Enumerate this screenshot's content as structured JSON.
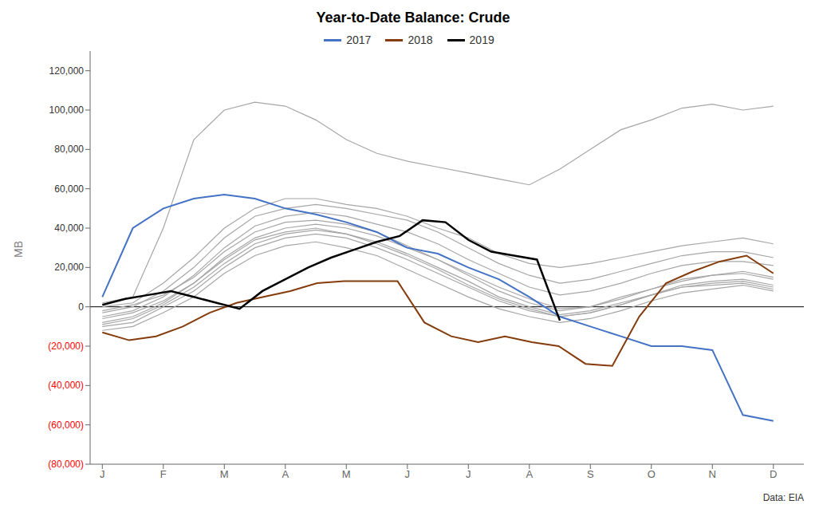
{
  "chart_data": {
    "type": "line",
    "title": "Year-to-Date Balance: Crude",
    "y_label": "MB",
    "annotation": "Data: EIA",
    "xlim": [
      -0.2,
      11.5
    ],
    "xticks": [
      {
        "value": 0,
        "label": "J"
      },
      {
        "value": 1,
        "label": "F"
      },
      {
        "value": 2,
        "label": "M"
      },
      {
        "value": 3,
        "label": "A"
      },
      {
        "value": 4,
        "label": "M"
      },
      {
        "value": 5,
        "label": "J"
      },
      {
        "value": 6,
        "label": "J"
      },
      {
        "value": 7,
        "label": "A"
      },
      {
        "value": 8,
        "label": "S"
      },
      {
        "value": 9,
        "label": "O"
      },
      {
        "value": 10,
        "label": "N"
      },
      {
        "value": 11,
        "label": "D"
      }
    ],
    "ylim": [
      -80000,
      130000
    ],
    "yticks": [
      {
        "value": -80000,
        "label": "(80,000)"
      },
      {
        "value": -60000,
        "label": "(60,000)"
      },
      {
        "value": -40000,
        "label": "(40,000)"
      },
      {
        "value": -20000,
        "label": "(20,000)"
      },
      0,
      {
        "value": 20000,
        "label": "20,000"
      },
      {
        "value": 40000,
        "label": "40,000"
      },
      {
        "value": 60000,
        "label": "60,000"
      },
      {
        "value": 80000,
        "label": "80,000"
      },
      {
        "value": 100000,
        "label": "100,000"
      },
      {
        "value": 120000,
        "label": "120,000"
      }
    ],
    "grid": false,
    "legend": "top",
    "x": [
      0,
      0.5,
      1,
      1.5,
      2,
      2.5,
      3,
      3.5,
      4,
      4.5,
      5,
      5.5,
      6,
      6.5,
      7,
      7.5,
      8,
      8.5,
      9,
      9.5,
      10,
      10.5,
      11
    ],
    "series": [
      {
        "color": "#A6A6A6",
        "values": [
          2000,
          5000,
          40000,
          85000,
          100000,
          104000,
          102000,
          95000,
          85000,
          78000,
          74000,
          71000,
          68000,
          65000,
          62000,
          70000,
          80000,
          90000,
          95000,
          101000,
          103000,
          100000,
          102000
        ]
      },
      {
        "color": "#A6A6A6",
        "values": [
          0,
          2000,
          12000,
          25000,
          40000,
          50000,
          55000,
          55000,
          52000,
          50000,
          46000,
          40000,
          35000,
          27000,
          22000,
          20000,
          22000,
          25000,
          28000,
          31000,
          33000,
          35000,
          32000
        ]
      },
      {
        "color": "#A6A6A6",
        "values": [
          -3000,
          0,
          8000,
          20000,
          35000,
          46000,
          50000,
          52000,
          50000,
          47000,
          44000,
          38000,
          30000,
          22000,
          16000,
          12000,
          14000,
          18000,
          22000,
          26000,
          28000,
          28000,
          25000
        ]
      },
      {
        "color": "#A6A6A6",
        "values": [
          -5000,
          -2000,
          5000,
          16000,
          30000,
          41000,
          46000,
          48000,
          46000,
          42000,
          38000,
          32000,
          24000,
          17000,
          10000,
          6000,
          8000,
          12000,
          17000,
          21000,
          23000,
          23000,
          21000
        ]
      },
      {
        "color": "#A6A6A6",
        "values": [
          -8000,
          -5000,
          2000,
          12000,
          25000,
          35000,
          40000,
          42000,
          40000,
          36000,
          30000,
          24000,
          16000,
          8000,
          2000,
          -2000,
          0,
          4000,
          9000,
          14000,
          16000,
          18000,
          15000
        ]
      },
      {
        "color": "#A6A6A6",
        "values": [
          -10000,
          -8000,
          0,
          8000,
          20000,
          30000,
          35000,
          37000,
          35000,
          30000,
          24000,
          17000,
          10000,
          3000,
          -2000,
          -5000,
          -3000,
          1000,
          6000,
          11000,
          13000,
          14000,
          11000
        ]
      },
      {
        "color": "#A6A6A6",
        "values": [
          -12000,
          -10000,
          -3000,
          5000,
          17000,
          26000,
          31000,
          33000,
          30000,
          26000,
          19000,
          12000,
          5000,
          -1000,
          -5000,
          -8000,
          -6000,
          -2000,
          3000,
          7000,
          9000,
          11000,
          8000
        ]
      },
      {
        "color": "#A6A6A6",
        "values": [
          -2000,
          1000,
          6000,
          15000,
          28000,
          38000,
          43000,
          44000,
          42000,
          38000,
          31000,
          24000,
          17000,
          10000,
          4000,
          -1000,
          0,
          5000,
          9000,
          13000,
          16000,
          17000,
          14000
        ]
      },
      {
        "color": "#A6A6A6",
        "values": [
          -6000,
          -3000,
          3000,
          12000,
          24000,
          34000,
          38000,
          40000,
          37000,
          33000,
          27000,
          20000,
          13000,
          5000,
          0,
          -4000,
          -2000,
          2000,
          6000,
          10000,
          12000,
          13000,
          10000
        ]
      },
      {
        "color": "#A6A6A6",
        "values": [
          -9000,
          -6000,
          1000,
          10000,
          22000,
          32000,
          37000,
          39000,
          37000,
          32000,
          26000,
          19000,
          11000,
          4000,
          -1000,
          -5000,
          -3000,
          1000,
          6000,
          10000,
          11000,
          12000,
          9000
        ]
      },
      {
        "name": "2017",
        "color": "#4472C4",
        "values": [
          5000,
          40000,
          50000,
          55000,
          57000,
          55000,
          50000,
          47000,
          43000,
          38000,
          30000,
          27000,
          20000,
          14000,
          5000,
          -5000,
          -10000,
          -15000,
          -20000,
          -20000,
          -22000,
          -55000,
          -58000
        ]
      },
      {
        "name": "2018",
        "color": "#843C0C",
        "x": [
          0,
          0.44,
          0.88,
          1.32,
          1.76,
          2.2,
          2.64,
          3.08,
          3.52,
          3.96,
          4.4,
          4.84,
          5.28,
          5.72,
          6.16,
          6.6,
          7.04,
          7.48,
          7.92,
          8.36,
          8.8,
          9.24,
          9.68,
          10.12,
          10.56,
          11
        ],
        "values": [
          -13000,
          -17000,
          -15000,
          -10000,
          -3000,
          2000,
          5000,
          8000,
          12000,
          13000,
          13000,
          13000,
          -8000,
          -15000,
          -18000,
          -15000,
          -18000,
          -20000,
          -29000,
          -30000,
          -5000,
          12000,
          18000,
          23000,
          26000,
          17000
        ]
      },
      {
        "name": "2019",
        "color": "#000000",
        "x": [
          0,
          0.375,
          0.75,
          1.125,
          1.5,
          1.875,
          2.25,
          2.625,
          3,
          3.375,
          3.75,
          4.125,
          4.5,
          4.875,
          5.25,
          5.625,
          6,
          6.375,
          6.75,
          7.125,
          7.5
        ],
        "values": [
          1000,
          4000,
          6000,
          8000,
          5000,
          2000,
          -1000,
          8000,
          14000,
          20000,
          25000,
          29000,
          33000,
          36000,
          44000,
          43000,
          34000,
          28000,
          26000,
          24000,
          -7000
        ]
      }
    ]
  }
}
